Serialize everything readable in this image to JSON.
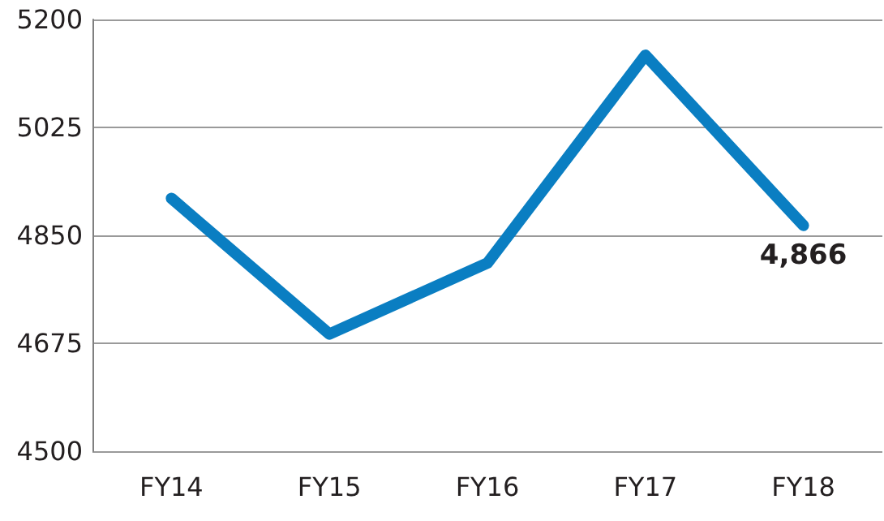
{
  "chart_data": {
    "type": "line",
    "categories": [
      "FY14",
      "FY15",
      "FY16",
      "FY17",
      "FY18"
    ],
    "series": [
      {
        "color": "#0a7ec2",
        "values": [
          4910,
          4690,
          4805,
          5142,
          4866
        ],
        "value_labels": [
          null,
          null,
          null,
          null,
          "4,866"
        ]
      }
    ],
    "ylim": [
      4500,
      5200
    ],
    "yticks": [
      4500,
      4675,
      4850,
      5025,
      5200
    ],
    "grid": "y",
    "marker": "none",
    "line_style": "solid"
  }
}
